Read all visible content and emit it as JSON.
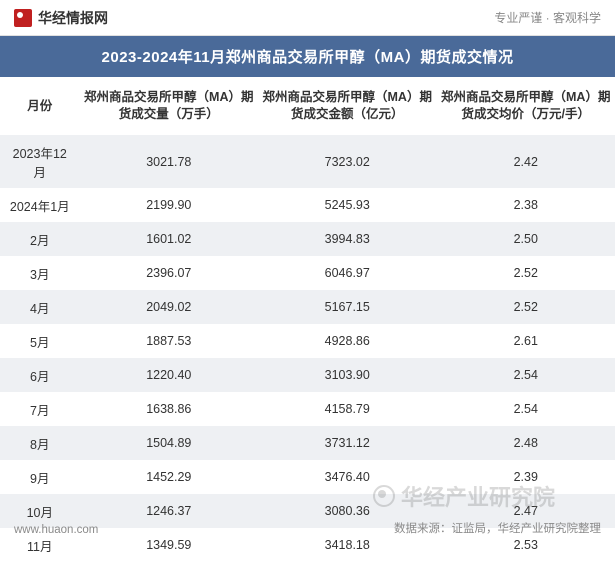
{
  "header": {
    "brand_name": "华经情报网",
    "tagline": "专业严谨 · 客观科学"
  },
  "title": "2023-2024年11月郑州商品交易所甲醇（MA）期货成交情况",
  "table": {
    "columns": [
      "月份",
      "郑州商品交易所甲醇（MA）期货成交量（万手）",
      "郑州商品交易所甲醇（MA）期货成交金额（亿元）",
      "郑州商品交易所甲醇（MA）期货成交均价（万元/手）"
    ],
    "rows": [
      [
        "2023年12月",
        "3021.78",
        "7323.02",
        "2.42"
      ],
      [
        "2024年1月",
        "2199.90",
        "5245.93",
        "2.38"
      ],
      [
        "2月",
        "1601.02",
        "3994.83",
        "2.50"
      ],
      [
        "3月",
        "2396.07",
        "6046.97",
        "2.52"
      ],
      [
        "4月",
        "2049.02",
        "5167.15",
        "2.52"
      ],
      [
        "5月",
        "1887.53",
        "4928.86",
        "2.61"
      ],
      [
        "6月",
        "1220.40",
        "3103.90",
        "2.54"
      ],
      [
        "7月",
        "1638.86",
        "4158.79",
        "2.54"
      ],
      [
        "8月",
        "1504.89",
        "3731.12",
        "2.48"
      ],
      [
        "9月",
        "1452.29",
        "3476.40",
        "2.39"
      ],
      [
        "10月",
        "1246.37",
        "3080.36",
        "2.47"
      ],
      [
        "11月",
        "1349.59",
        "3418.18",
        "2.53"
      ]
    ]
  },
  "watermark": "华经产业研究院",
  "footer": {
    "site": "www.huaon.com",
    "source": "数据来源：证监局，华经产业研究院整理"
  },
  "styling": {
    "title_bg": "#4a6a99",
    "title_color": "#ffffff",
    "row_odd_bg": "#eef0f3",
    "row_even_bg": "#ffffff",
    "text_color": "#333333",
    "footer_color": "#8a8a8a",
    "watermark_color": "rgba(120,120,120,0.28)",
    "brand_logo_color": "#c02020",
    "font_family": "Microsoft YaHei",
    "title_fontsize": 15,
    "body_fontsize": 12.5,
    "footer_fontsize": 11.5
  }
}
